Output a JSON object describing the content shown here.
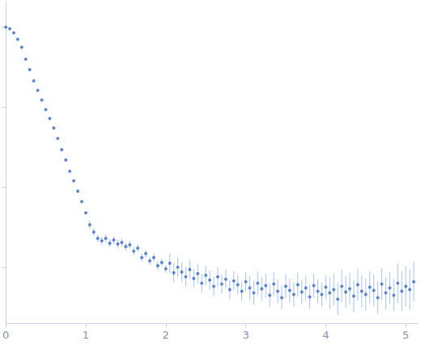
{
  "chart_data": {
    "type": "scatter",
    "x": [
      0,
      0.05,
      0.1,
      0.15,
      0.2,
      0.25,
      0.3,
      0.35,
      0.4,
      0.45,
      0.5,
      0.55,
      0.6,
      0.65,
      0.7,
      0.75,
      0.8,
      0.85,
      0.9,
      0.95,
      1.0,
      1.05,
      1.1,
      1.15,
      1.2,
      1.25,
      1.3,
      1.35,
      1.4,
      1.45,
      1.5,
      1.55,
      1.6,
      1.65,
      1.7,
      1.75,
      1.8,
      1.85,
      1.9,
      1.95,
      2.0,
      2.05,
      2.1,
      2.15,
      2.2,
      2.25,
      2.3,
      2.35,
      2.4,
      2.45,
      2.5,
      2.55,
      2.6,
      2.65,
      2.7,
      2.75,
      2.8,
      2.85,
      2.9,
      2.95,
      3.0,
      3.05,
      3.1,
      3.15,
      3.2,
      3.25,
      3.3,
      3.35,
      3.4,
      3.45,
      3.5,
      3.55,
      3.6,
      3.65,
      3.7,
      3.75,
      3.8,
      3.85,
      3.9,
      3.95,
      4.0,
      4.05,
      4.1,
      4.15,
      4.2,
      4.25,
      4.3,
      4.35,
      4.4,
      4.45,
      4.5,
      4.55,
      4.6,
      4.65,
      4.7,
      4.75,
      4.8,
      4.85,
      4.9,
      4.95,
      5.0,
      5.05,
      5.1
    ],
    "values": [
      4.0,
      3.98,
      3.93,
      3.85,
      3.75,
      3.6,
      3.47,
      3.33,
      3.21,
      3.09,
      2.97,
      2.86,
      2.74,
      2.61,
      2.47,
      2.34,
      2.2,
      2.08,
      1.95,
      1.82,
      1.68,
      1.53,
      1.44,
      1.36,
      1.33,
      1.36,
      1.3,
      1.34,
      1.29,
      1.31,
      1.26,
      1.28,
      1.2,
      1.24,
      1.12,
      1.17,
      1.08,
      1.12,
      1.02,
      1.06,
      0.98,
      1.05,
      0.93,
      1.0,
      0.94,
      0.88,
      0.97,
      0.86,
      0.92,
      0.8,
      0.9,
      0.84,
      0.76,
      0.88,
      0.79,
      0.85,
      0.72,
      0.83,
      0.78,
      0.7,
      0.82,
      0.74,
      0.68,
      0.8,
      0.73,
      0.77,
      0.65,
      0.79,
      0.7,
      0.62,
      0.76,
      0.71,
      0.66,
      0.78,
      0.69,
      0.74,
      0.63,
      0.77,
      0.7,
      0.66,
      0.75,
      0.68,
      0.72,
      0.6,
      0.76,
      0.69,
      0.73,
      0.64,
      0.78,
      0.7,
      0.66,
      0.75,
      0.71,
      0.62,
      0.79,
      0.68,
      0.74,
      0.65,
      0.8,
      0.7,
      0.76,
      0.72,
      0.82
    ],
    "errors": [
      0.01,
      0.01,
      0.01,
      0.01,
      0.01,
      0.01,
      0.01,
      0.01,
      0.01,
      0.01,
      0.01,
      0.01,
      0.01,
      0.01,
      0.01,
      0.01,
      0.01,
      0.01,
      0.01,
      0.01,
      0.01,
      0.05,
      0.05,
      0.05,
      0.05,
      0.05,
      0.05,
      0.05,
      0.05,
      0.05,
      0.05,
      0.05,
      0.05,
      0.05,
      0.05,
      0.05,
      0.05,
      0.05,
      0.05,
      0.05,
      0.05,
      0.12,
      0.12,
      0.12,
      0.12,
      0.12,
      0.12,
      0.12,
      0.12,
      0.12,
      0.12,
      0.12,
      0.12,
      0.12,
      0.12,
      0.12,
      0.12,
      0.12,
      0.12,
      0.12,
      0.12,
      0.15,
      0.15,
      0.15,
      0.15,
      0.15,
      0.15,
      0.15,
      0.15,
      0.15,
      0.15,
      0.15,
      0.15,
      0.15,
      0.15,
      0.15,
      0.15,
      0.15,
      0.15,
      0.15,
      0.15,
      0.2,
      0.2,
      0.2,
      0.2,
      0.2,
      0.2,
      0.2,
      0.2,
      0.2,
      0.2,
      0.2,
      0.2,
      0.2,
      0.2,
      0.2,
      0.2,
      0.2,
      0.25,
      0.25,
      0.25,
      0.25,
      0.25
    ],
    "color": "#3a6bc4",
    "marker": "circle",
    "xlim": [
      0,
      5.15
    ],
    "xticks": [
      0,
      1,
      2,
      3,
      4,
      5
    ],
    "ylim": [
      0.3,
      4.32
    ],
    "yticks": [
      1,
      2,
      3,
      4
    ],
    "grid": false,
    "tick_labels": "x"
  }
}
